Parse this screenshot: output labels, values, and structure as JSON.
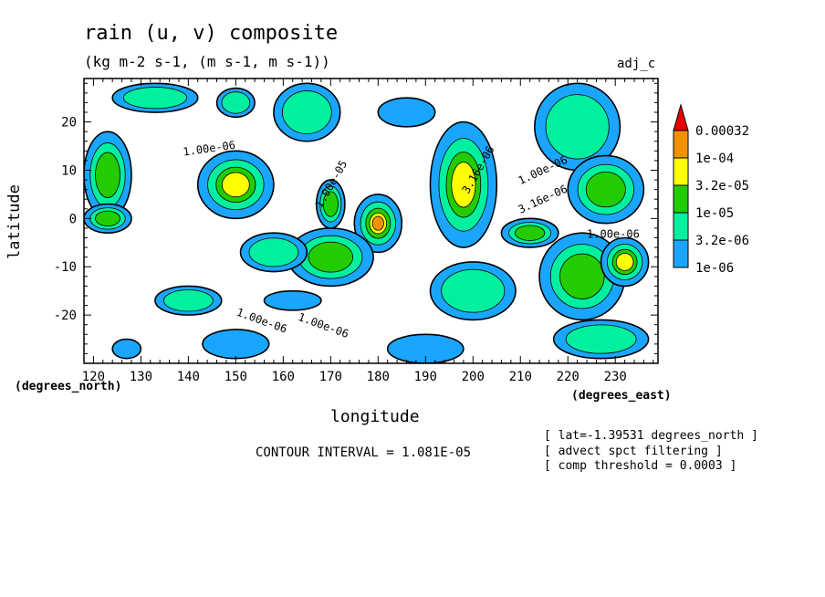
{
  "figure": {
    "title": "rain (u, v) composite",
    "subtitle": "(kg m-2 s-1, (m s-1, m s-1))",
    "tag": "adj_c",
    "contour_interval": "CONTOUR INTERVAL = 1.081E-05",
    "notes": [
      "[ lat=-1.39531 degrees_north ]",
      "[ advect spct filtering ]",
      "[ comp threshold = 0.0003 ]"
    ]
  },
  "chart_data": {
    "type": "heatmap",
    "title": "rain (u, v) composite",
    "xlabel": "longitude",
    "ylabel": "latitude",
    "x_units": "(degrees_east)",
    "y_units": "(degrees_north)",
    "xlim": [
      118,
      239
    ],
    "ylim": [
      -30,
      29
    ],
    "x_ticks": [
      120,
      130,
      140,
      150,
      160,
      170,
      180,
      190,
      200,
      210,
      220,
      230
    ],
    "y_ticks": [
      -20,
      -10,
      0,
      10,
      20
    ],
    "legend": {
      "placement": "right",
      "levels": [
        "0.00032",
        "1e-04",
        "3.2e-05",
        "1e-05",
        "3.2e-06",
        "1e-06"
      ],
      "colors": [
        "#e60000",
        "#f29200",
        "#ffff00",
        "#22cc00",
        "#00f0a0",
        "#1aa6ff"
      ]
    },
    "contour_labels": [
      {
        "text": "1.00e-06",
        "x": 139,
        "y": 13,
        "angle": -8
      },
      {
        "text": "1.00e-06",
        "x": 150,
        "y": -20,
        "angle": 20
      },
      {
        "text": "1.00e-06",
        "x": 163,
        "y": -21,
        "angle": 20
      },
      {
        "text": "1.00e-06",
        "x": 224,
        "y": -4,
        "angle": 0
      },
      {
        "text": "1.00e-06",
        "x": 210,
        "y": 7,
        "angle": -25
      },
      {
        "text": "3.16e-06",
        "x": 210,
        "y": 1,
        "angle": -25
      },
      {
        "text": "3.16e-06",
        "x": 199,
        "y": 5,
        "angle": -60
      },
      {
        "text": "1.00e-05",
        "x": 168,
        "y": 2,
        "angle": -60
      }
    ],
    "blobs": [
      {
        "x": 123,
        "y": 9,
        "rx": 5,
        "ry": 9,
        "max": 3
      },
      {
        "x": 123,
        "y": 0,
        "rx": 5,
        "ry": 3,
        "max": 3
      },
      {
        "x": 150,
        "y": 7,
        "rx": 8,
        "ry": 7,
        "max": 4
      },
      {
        "x": 133,
        "y": 25,
        "rx": 9,
        "ry": 3,
        "max": 2
      },
      {
        "x": 150,
        "y": 24,
        "rx": 4,
        "ry": 3,
        "max": 2
      },
      {
        "x": 165,
        "y": 22,
        "rx": 7,
        "ry": 6,
        "max": 2
      },
      {
        "x": 186,
        "y": 22,
        "rx": 6,
        "ry": 3,
        "max": 1
      },
      {
        "x": 180,
        "y": -1,
        "rx": 5,
        "ry": 6,
        "max": 5
      },
      {
        "x": 170,
        "y": -8,
        "rx": 9,
        "ry": 6,
        "max": 3
      },
      {
        "x": 170,
        "y": 3,
        "rx": 3,
        "ry": 5,
        "max": 3
      },
      {
        "x": 158,
        "y": -7,
        "rx": 7,
        "ry": 4,
        "max": 2
      },
      {
        "x": 198,
        "y": 7,
        "rx": 7,
        "ry": 13,
        "max": 4
      },
      {
        "x": 222,
        "y": 19,
        "rx": 9,
        "ry": 9,
        "max": 2
      },
      {
        "x": 228,
        "y": 6,
        "rx": 8,
        "ry": 7,
        "max": 3
      },
      {
        "x": 212,
        "y": -3,
        "rx": 6,
        "ry": 3,
        "max": 3
      },
      {
        "x": 223,
        "y": -12,
        "rx": 9,
        "ry": 9,
        "max": 3
      },
      {
        "x": 232,
        "y": -9,
        "rx": 5,
        "ry": 5,
        "max": 4
      },
      {
        "x": 200,
        "y": -15,
        "rx": 9,
        "ry": 6,
        "max": 2
      },
      {
        "x": 227,
        "y": -25,
        "rx": 10,
        "ry": 4,
        "max": 2
      },
      {
        "x": 140,
        "y": -17,
        "rx": 7,
        "ry": 3,
        "max": 2
      },
      {
        "x": 190,
        "y": -27,
        "rx": 8,
        "ry": 3,
        "max": 1
      },
      {
        "x": 150,
        "y": -26,
        "rx": 7,
        "ry": 3,
        "max": 1
      },
      {
        "x": 127,
        "y": -27,
        "rx": 3,
        "ry": 2,
        "max": 1
      },
      {
        "x": 162,
        "y": -17,
        "rx": 6,
        "ry": 2,
        "max": 1
      }
    ]
  }
}
